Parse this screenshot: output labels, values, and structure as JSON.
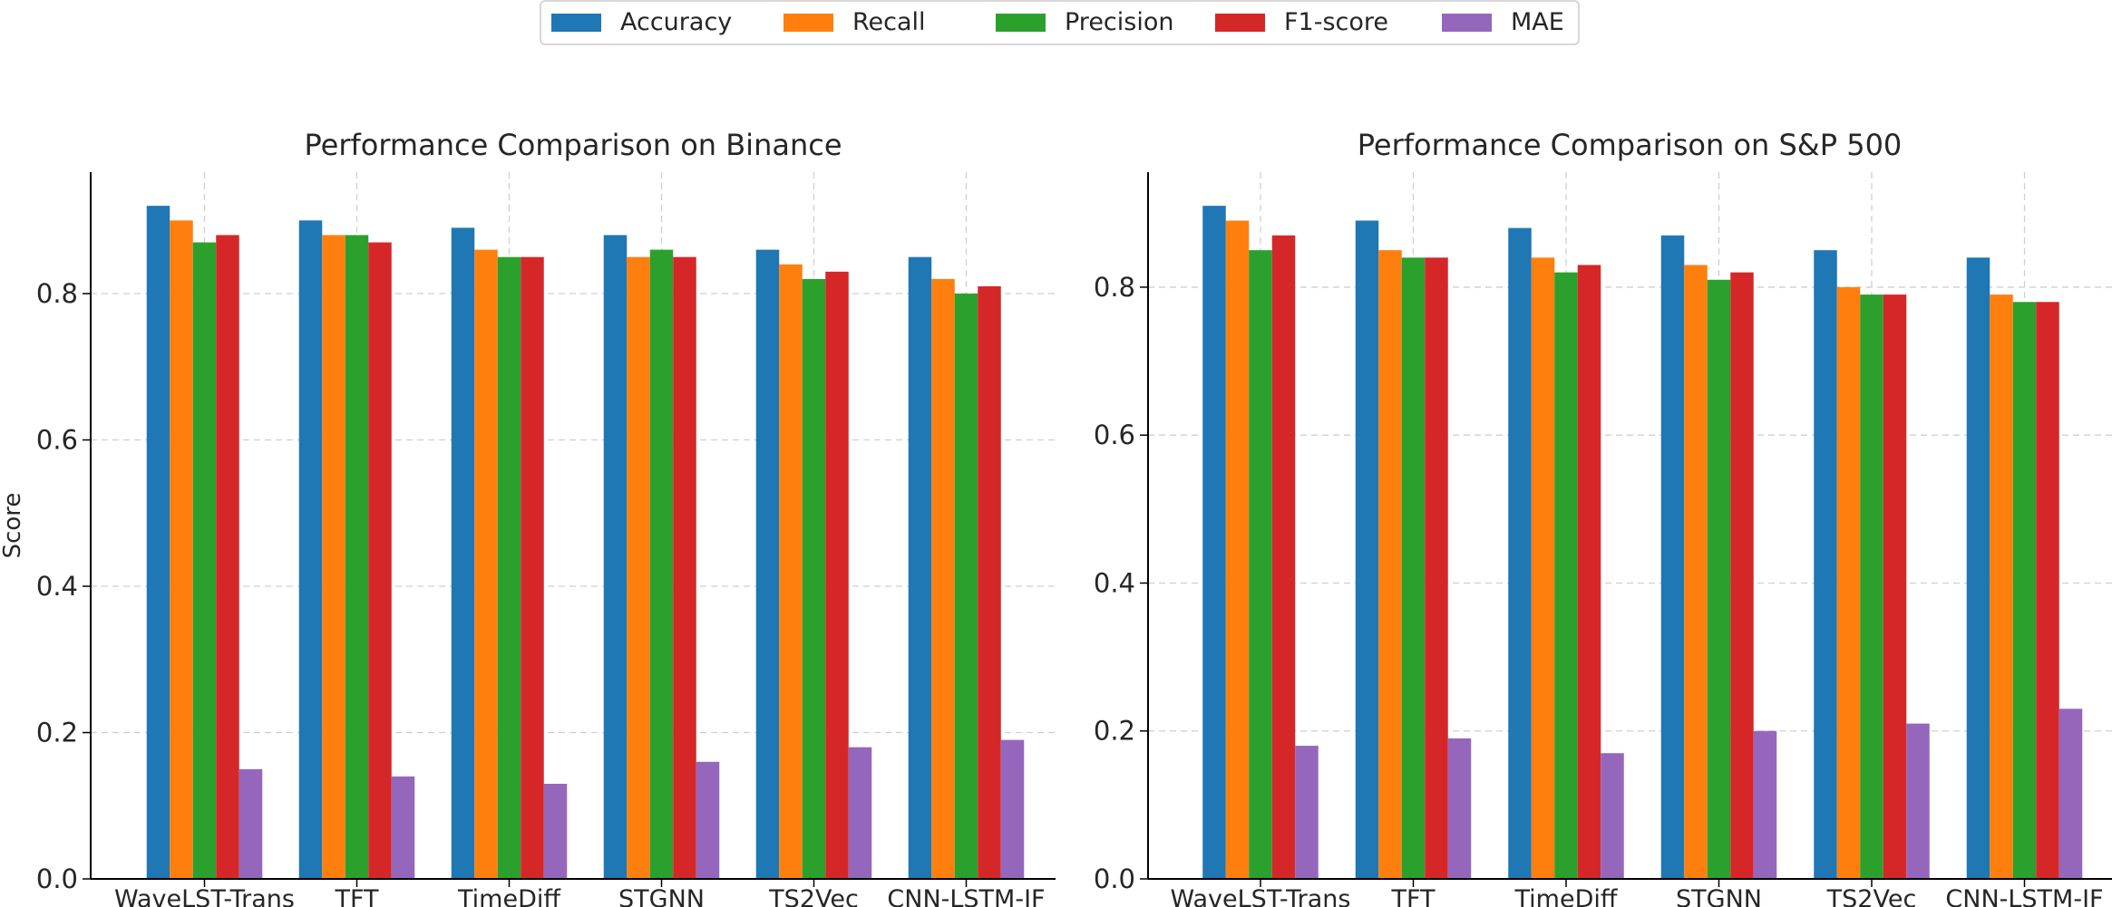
{
  "legend": {
    "placement": "top-center",
    "items": [
      {
        "label": "Accuracy",
        "color": "#1f77b4"
      },
      {
        "label": "Recall",
        "color": "#ff7f0e"
      },
      {
        "label": "Precision",
        "color": "#2ca02c"
      },
      {
        "label": "F1-score",
        "color": "#d62728"
      },
      {
        "label": "MAE",
        "color": "#9467bd"
      }
    ]
  },
  "chart_data": [
    {
      "type": "bar",
      "title": "Performance Comparison on Binance",
      "xlabel": "",
      "ylabel": "Score",
      "ylim": [
        0,
        0.966
      ],
      "yticks": [
        0.0,
        0.2,
        0.4,
        0.6,
        0.8
      ],
      "ytick_labels": [
        "0.0",
        "0.2",
        "0.4",
        "0.6",
        "0.8"
      ],
      "grid": true,
      "categories": [
        "WaveLST-Trans",
        "TFT",
        "TimeDiff",
        "STGNN",
        "TS2Vec",
        "CNN-LSTM-IF"
      ],
      "series": [
        {
          "name": "Accuracy",
          "values": [
            0.92,
            0.9,
            0.89,
            0.88,
            0.86,
            0.85
          ]
        },
        {
          "name": "Recall",
          "values": [
            0.9,
            0.88,
            0.86,
            0.85,
            0.84,
            0.82
          ]
        },
        {
          "name": "Precision",
          "values": [
            0.87,
            0.88,
            0.85,
            0.86,
            0.82,
            0.8
          ]
        },
        {
          "name": "F1-score",
          "values": [
            0.88,
            0.87,
            0.85,
            0.85,
            0.83,
            0.81
          ]
        },
        {
          "name": "MAE",
          "values": [
            0.15,
            0.14,
            0.13,
            0.16,
            0.18,
            0.19
          ]
        }
      ]
    },
    {
      "type": "bar",
      "title": "Performance Comparison on S&P 500",
      "xlabel": "",
      "ylabel": "",
      "ylim": [
        0,
        0.9555
      ],
      "yticks": [
        0.0,
        0.2,
        0.4,
        0.6,
        0.8
      ],
      "ytick_labels": [
        "0.0",
        "0.2",
        "0.4",
        "0.6",
        "0.8"
      ],
      "grid": true,
      "categories": [
        "WaveLST-Trans",
        "TFT",
        "TimeDiff",
        "STGNN",
        "TS2Vec",
        "CNN-LSTM-IF"
      ],
      "series": [
        {
          "name": "Accuracy",
          "values": [
            0.91,
            0.89,
            0.88,
            0.87,
            0.85,
            0.84
          ]
        },
        {
          "name": "Recall",
          "values": [
            0.89,
            0.85,
            0.84,
            0.83,
            0.8,
            0.79
          ]
        },
        {
          "name": "Precision",
          "values": [
            0.85,
            0.84,
            0.82,
            0.81,
            0.79,
            0.78
          ]
        },
        {
          "name": "F1-score",
          "values": [
            0.87,
            0.84,
            0.83,
            0.82,
            0.79,
            0.78
          ]
        },
        {
          "name": "MAE",
          "values": [
            0.18,
            0.19,
            0.17,
            0.2,
            0.21,
            0.23
          ]
        }
      ]
    }
  ]
}
